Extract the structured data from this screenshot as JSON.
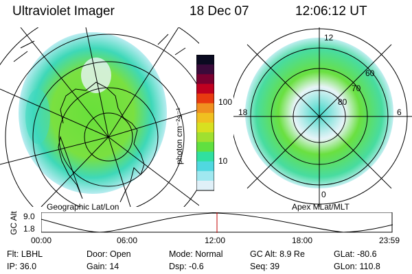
{
  "header": {
    "title": "Ultraviolet Imager",
    "date": "18 Dec 07",
    "time": "12:06:12 UT"
  },
  "left_panel": {
    "label": "Geographic Lat/Lon"
  },
  "right_panel": {
    "label": "Apex MLat/MLT",
    "mlt_labels": [
      "12",
      "18",
      "6",
      "0"
    ],
    "mlat_labels": [
      "60",
      "70",
      "80"
    ]
  },
  "colorbar": {
    "unit_label": "photon cm⁻²s⁻¹",
    "ticks": [
      "100",
      "10"
    ],
    "colors": [
      "#0a0a20",
      "#3a0a3a",
      "#7a0030",
      "#c00020",
      "#e83a10",
      "#f09020",
      "#f0c020",
      "#d8e020",
      "#a0e030",
      "#60e040",
      "#30e0a0",
      "#50d8e0",
      "#a0e8f0",
      "#e0f0f8"
    ]
  },
  "timeline": {
    "axis_label": "GC Alt",
    "y_ticks": [
      "9.0",
      "1.8"
    ],
    "x_ticks": [
      "00:00",
      "06:00",
      "12:00",
      "18:00",
      "23:59"
    ],
    "marker_color": "#c00000"
  },
  "info": {
    "filter": "Flt: LBHL",
    "ip": "IP: 36.0",
    "door": "Door: Open",
    "gain": "Gain: 14",
    "mode": "Mode: Normal",
    "dsp": "Dsp:    -0.6",
    "gc_alt": "GC Alt: 8.9 Re",
    "seq": "Seq: 39",
    "glat": "GLat: -80.6",
    "glon": "GLon: 110.8"
  }
}
